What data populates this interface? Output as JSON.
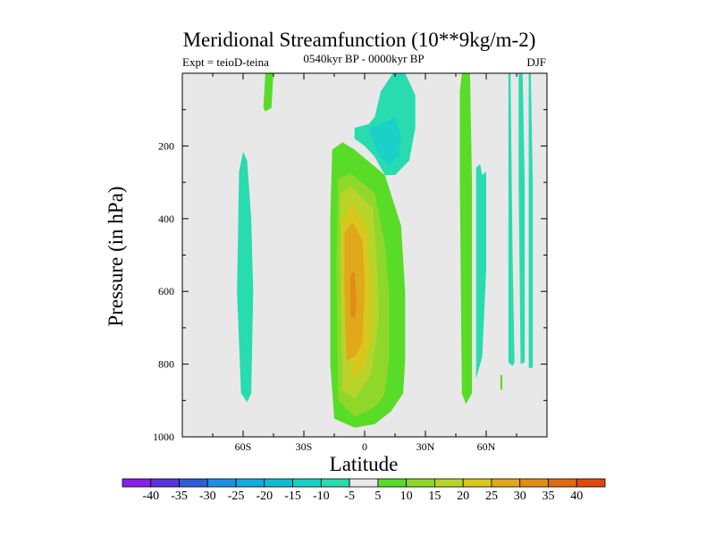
{
  "chart_data": {
    "type": "heatmap",
    "title": "Meridional Streamfunction (10**9kg/m-2)",
    "experiment_label": "Expt = teioD-teina",
    "subtitle": "0540kyr BP - 0000kyr BP",
    "season": "DJF",
    "xlabel": "Latitude",
    "ylabel": "Pressure (in hPa)",
    "xlim": [
      -90,
      90
    ],
    "ylim": [
      1000,
      0
    ],
    "x_ticks": [
      {
        "value": -60,
        "label": "60S"
      },
      {
        "value": -30,
        "label": "30S"
      },
      {
        "value": 0,
        "label": "0"
      },
      {
        "value": 30,
        "label": "30N"
      },
      {
        "value": 60,
        "label": "60N"
      }
    ],
    "y_ticks": [
      {
        "value": 200,
        "label": "200"
      },
      {
        "value": 400,
        "label": "400"
      },
      {
        "value": 600,
        "label": "600"
      },
      {
        "value": 800,
        "label": "800"
      },
      {
        "value": 1000,
        "label": "1000"
      }
    ],
    "colorbar": {
      "colors": [
        "#8a1ee6",
        "#5a32d8",
        "#2e5ed6",
        "#1f8fe6",
        "#14aade",
        "#10bcd2",
        "#1ad0c8",
        "#28dcaf",
        "#e8e8e8",
        "#58dc28",
        "#8fd82a",
        "#b8d42a",
        "#d8c81e",
        "#e0a81a",
        "#e08c16",
        "#e06a10",
        "#dc4a0c"
      ],
      "labels": [
        "-40",
        "-35",
        "-30",
        "-25",
        "-20",
        "-15",
        "-10",
        "-5",
        "5",
        "10",
        "15",
        "20",
        "25",
        "30",
        "35",
        "40"
      ]
    },
    "regions": [
      {
        "level": 5,
        "lat": [
          -49,
          -47,
          -45,
          -46,
          -49,
          -50
        ],
        "p": [
          0,
          0,
          0,
          95,
          105,
          95
        ]
      },
      {
        "level": -5,
        "lat": [
          -62,
          -60,
          -58,
          -56,
          -55,
          -56,
          -58,
          -61,
          -63
        ],
        "p": [
          270,
          215,
          240,
          400,
          600,
          880,
          905,
          880,
          600
        ]
      },
      {
        "level": 5,
        "lat": [
          -16,
          -11,
          -5,
          10,
          18,
          20,
          20,
          19,
          13,
          5,
          -5,
          -15,
          -17,
          -17
        ],
        "p": [
          210,
          190,
          210,
          280,
          420,
          600,
          790,
          880,
          930,
          965,
          975,
          950,
          800,
          400
        ]
      },
      {
        "level": 10,
        "lat": [
          -13,
          -7,
          5,
          10,
          12,
          12,
          10,
          6,
          -5,
          -13,
          -14
        ],
        "p": [
          290,
          275,
          330,
          470,
          600,
          790,
          880,
          915,
          945,
          900,
          520
        ]
      },
      {
        "level": 15,
        "lat": [
          -12,
          -7,
          4,
          6,
          7,
          3,
          -5,
          -11,
          -12
        ],
        "p": [
          330,
          310,
          370,
          520,
          680,
          830,
          895,
          870,
          500
        ]
      },
      {
        "level": 20,
        "lat": [
          -11,
          -6,
          1,
          3,
          3,
          0,
          -6,
          -11
        ],
        "p": [
          400,
          355,
          420,
          560,
          730,
          810,
          840,
          600
        ]
      },
      {
        "level": 25,
        "lat": [
          -10,
          -6,
          -1,
          0,
          -1,
          -5,
          -9,
          -10
        ],
        "p": [
          440,
          410,
          460,
          580,
          740,
          780,
          790,
          600
        ]
      },
      {
        "level": 30,
        "lat": [
          -7,
          -5,
          -4,
          -5,
          -7
        ],
        "p": [
          555,
          545,
          635,
          675,
          665
        ]
      },
      {
        "level": -5,
        "lat": [
          -5,
          2,
          5,
          8,
          14,
          20,
          25,
          25,
          22,
          15,
          10,
          5,
          0,
          -5
        ],
        "p": [
          150,
          140,
          120,
          50,
          0,
          0,
          60,
          150,
          240,
          280,
          280,
          230,
          200,
          180
        ]
      },
      {
        "level": -10,
        "lat": [
          2,
          8,
          15,
          18,
          17,
          12,
          7,
          4
        ],
        "p": [
          150,
          140,
          120,
          175,
          225,
          255,
          225,
          180
        ]
      },
      {
        "level": 5,
        "lat": [
          48,
          50,
          52,
          53,
          53,
          50,
          48,
          47,
          47
        ],
        "p": [
          0,
          0,
          0,
          300,
          880,
          910,
          880,
          300,
          50
        ]
      },
      {
        "level": -5,
        "lat": [
          55,
          57,
          58,
          60,
          60,
          58,
          55,
          55
        ],
        "p": [
          260,
          250,
          280,
          270,
          540,
          780,
          840,
          600
        ]
      },
      {
        "level": 5,
        "lat": [
          67,
          68,
          68,
          67
        ],
        "p": [
          830,
          830,
          870,
          870
        ]
      },
      {
        "level": -5,
        "lat": [
          71,
          72,
          73,
          74,
          73,
          71,
          71
        ],
        "p": [
          0,
          0,
          500,
          795,
          805,
          795,
          300
        ]
      },
      {
        "level": -5,
        "lat": [
          76,
          78,
          79,
          79,
          77,
          76
        ],
        "p": [
          0,
          0,
          300,
          795,
          800,
          300
        ]
      },
      {
        "level": -5,
        "lat": [
          81,
          82,
          83,
          83,
          81
        ],
        "p": [
          0,
          0,
          300,
          810,
          810
        ]
      }
    ]
  }
}
